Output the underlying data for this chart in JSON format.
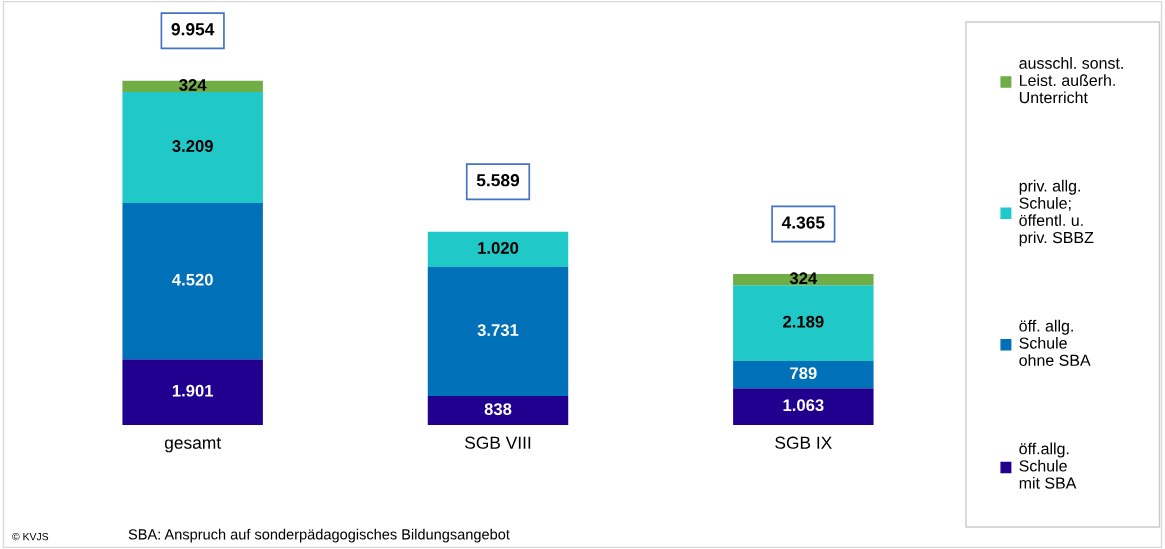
{
  "chart_data": {
    "type": "bar",
    "stacked": true,
    "categories": [
      "gesamt",
      "SGB VIII",
      "SGB IX"
    ],
    "series": [
      {
        "name": "öff.allg.\nSchule\nmit SBA",
        "color": "#22008f",
        "values": [
          1901,
          838,
          1063
        ],
        "value_labels": [
          "1.901",
          "838",
          "1.063"
        ]
      },
      {
        "name": "öff. allg.\nSchule\nohne SBA",
        "color": "#0070b8",
        "values": [
          4520,
          3731,
          789
        ],
        "value_labels": [
          "4.520",
          "3.731",
          "789"
        ]
      },
      {
        "name": "priv. allg.\nSchule;\nöffentl. u.\npriv. SBBZ",
        "color": "#20c8c8",
        "values": [
          3209,
          1020,
          2189
        ],
        "value_labels": [
          "3.209",
          "1.020",
          "2.189"
        ]
      },
      {
        "name": "ausschl. sonst.\nLeist. außerh.\nUnterricht",
        "color": "#70ad47",
        "values": [
          324,
          null,
          324
        ],
        "value_labels": [
          "324",
          null,
          "324"
        ]
      }
    ],
    "totals": [
      "9.954",
      "5.589",
      "4.365"
    ],
    "ylim": [
      0,
      12000
    ],
    "tick_labels": "x",
    "grid": false,
    "legend": "right",
    "annotations": [
      "SBA: Anspruch auf sonderpädagogisches Bildungsangebot",
      "© KVJS"
    ]
  }
}
